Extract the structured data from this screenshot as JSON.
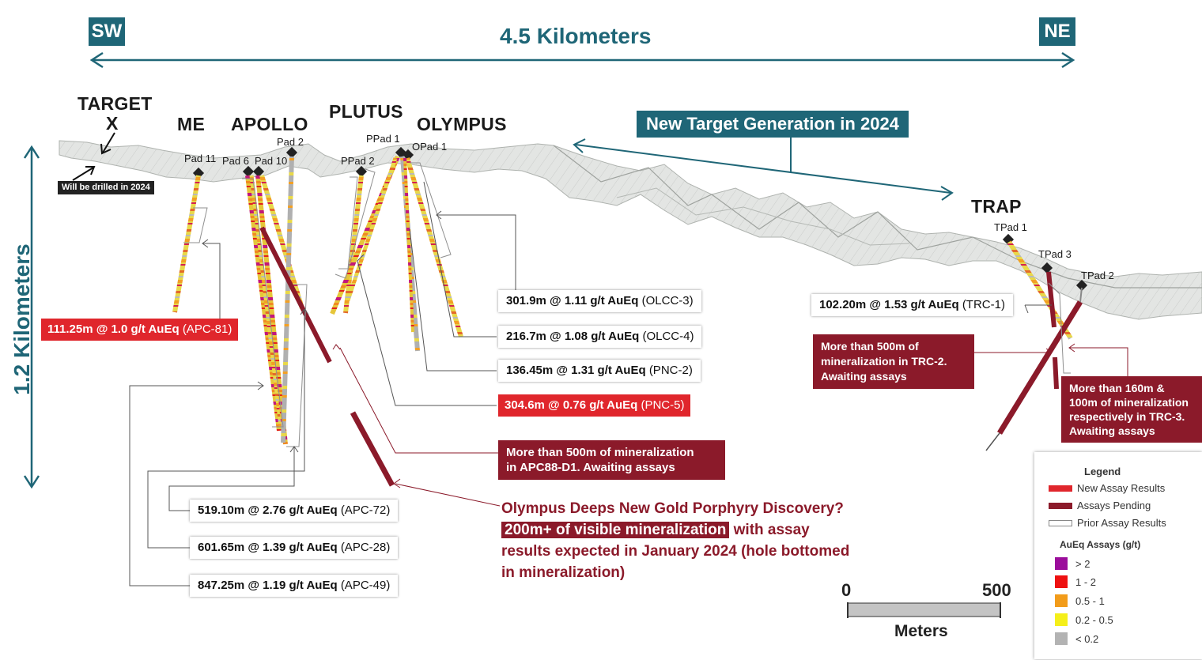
{
  "header": {
    "sw_label": "SW",
    "ne_label": "NE",
    "distance_label": "4.5 Kilometers",
    "vertical_label": "1.2 Kilometers"
  },
  "targets": {
    "target_x_line1": "TARGET",
    "target_x_line2": "X",
    "me": "ME",
    "apollo": "APOLLO",
    "plutus": "PLUTUS",
    "olympus": "OLYMPUS",
    "trap": "TRAP"
  },
  "pads": {
    "pad11": "Pad 11",
    "pad6": "Pad 6",
    "pad10": "Pad 10",
    "pad2": "Pad 2",
    "ppad2": "PPad 2",
    "ppad1": "PPad 1",
    "opad1": "OPad 1",
    "tpad1": "TPad 1",
    "tpad3": "TPad 3",
    "tpad2": "TPad 2"
  },
  "notes": {
    "drill_note": "Will be drilled in 2024",
    "new_target": "New Target Generation in 2024"
  },
  "callouts": {
    "olcc3": {
      "value": "301.9m @ 1.11 g/t AuEq",
      "hole": "(OLCC-3)"
    },
    "olcc4": {
      "value": "216.7m @ 1.08 g/t AuEq",
      "hole": "(OLCC-4)"
    },
    "pnc2": {
      "value": "136.45m @ 1.31 g/t AuEq",
      "hole": "(PNC-2)"
    },
    "pnc5": {
      "value": "304.6m @ 0.76 g/t AuEq",
      "hole": "(PNC-5)"
    },
    "apc81": {
      "value": "111.25m @ 1.0 g/t AuEq",
      "hole": "(APC-81)"
    },
    "apc72": {
      "value": "519.10m @ 2.76 g/t AuEq",
      "hole": "(APC-72)"
    },
    "apc28": {
      "value": "601.65m @ 1.39 g/t AuEq",
      "hole": "(APC-28)"
    },
    "apc49": {
      "value": "847.25m @ 1.19 g/t AuEq",
      "hole": "(APC-49)"
    },
    "trc1": {
      "value": "102.20m @ 1.53 g/t AuEq",
      "hole": "(TRC-1)"
    },
    "apc88": {
      "line1": "More than 500m of mineralization",
      "line2": "in APC88-D1. Awaiting assays"
    },
    "trc2": {
      "line1": "More than 500m of",
      "line2": "mineralization in TRC-2.",
      "line3": "Awaiting assays"
    },
    "trc3": {
      "line1": "More than 160m &",
      "line2": "100m of mineralization",
      "line3": "respectively in TRC-3.",
      "line4": "Awaiting assays"
    }
  },
  "olympus_deeps": {
    "line1": "Olympus Deeps New Gold Porphyry Discovery?",
    "highlight": "200m+ of visible mineralization",
    "line2_rest": "with assay",
    "line3": "results expected in January 2024 (hole bottomed",
    "line4": "in mineralization)"
  },
  "scale_bar": {
    "min": "0",
    "max": "500",
    "unit": "Meters"
  },
  "legend": {
    "title": "Legend",
    "items": [
      {
        "label": "New Assay Results",
        "color": "#e0262c"
      },
      {
        "label": "Assays Pending",
        "color": "#8b1a2a"
      },
      {
        "label": "Prior Assay Results",
        "color": "#ffffff"
      }
    ],
    "assay_title": "AuEq Assays (g/t)",
    "assay_items": [
      {
        "label": "> 2",
        "color": "#9b0d9b"
      },
      {
        "label": "1 - 2",
        "color": "#ee1111"
      },
      {
        "label": "0.5 - 1",
        "color": "#f29c1a"
      },
      {
        "label": "0.2 - 0.5",
        "color": "#f5ef1a"
      },
      {
        "label": "< 0.2",
        "color": "#b3b3b3"
      }
    ]
  },
  "colors": {
    "teal": "#1f6677",
    "new_assay_red": "#e0262c",
    "pending_maroon": "#8b1a2a"
  }
}
